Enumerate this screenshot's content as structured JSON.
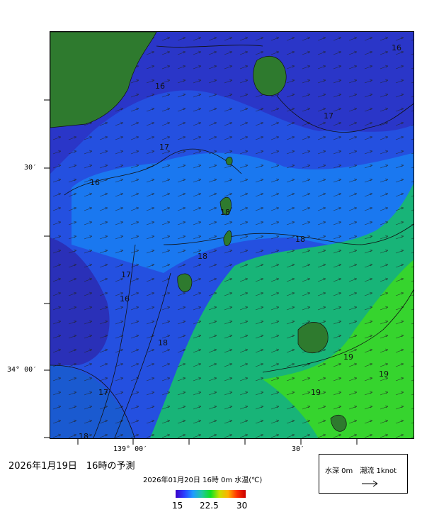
{
  "map": {
    "isotherm_labels": [
      "16",
      "16",
      "16",
      "16",
      "17",
      "17",
      "17",
      "17",
      "18",
      "18",
      "18",
      "18",
      "18",
      "19",
      "19",
      "19"
    ],
    "axis": {
      "lat_labels": [
        "30′",
        "34° 00′"
      ],
      "lon_labels": [
        "139° 00′",
        "30′"
      ]
    }
  },
  "footer": {
    "title": "2026年1月19日　16時の予測",
    "subtitle": "2026年01月20日 16時 0m 水温(℃)",
    "colorbar_ticks": [
      "15",
      "22.5",
      "30"
    ]
  },
  "legend": {
    "label": "水深 0m　潮流 1knot"
  },
  "colors": {
    "land": "#2e7a2e",
    "sea_cold": "#2a40d8",
    "sea_mid": "#1e78f0",
    "sea_warm": "#18b070",
    "sea_warmest": "#3cdc28"
  }
}
